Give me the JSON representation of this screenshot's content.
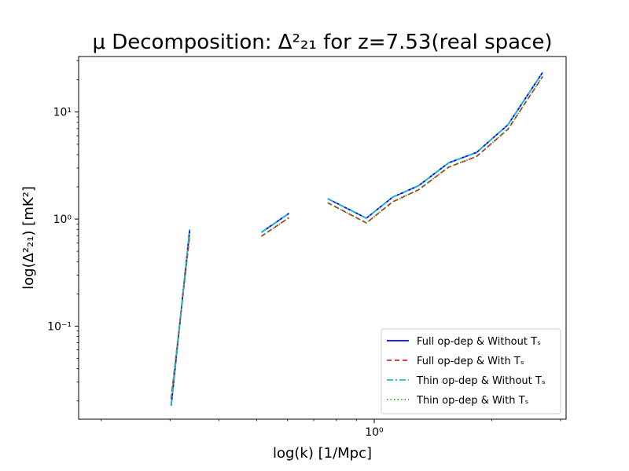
{
  "chart_data": {
    "type": "line",
    "title": "μ Decomposition: Δ²₂₁ for z=7.53(real space)",
    "xlabel": "log(k) [1/Mpc]",
    "ylabel": "log(Δ²₂₁) [mK²]",
    "xscale": "log",
    "yscale": "log",
    "xlim": [
      0.175,
      3.1
    ],
    "ylim": [
      0.0135,
      33
    ],
    "grid": false,
    "legend_position": "lower-right",
    "x_ticks": [
      {
        "value": 1,
        "label": "10⁰"
      }
    ],
    "y_ticks": [
      {
        "value": 0.1,
        "label": "10⁻¹"
      },
      {
        "value": 1,
        "label": "10⁰"
      },
      {
        "value": 10,
        "label": "10¹"
      }
    ],
    "series": [
      {
        "name": "Full op-dep & Without Tₛ",
        "color": "#0000ff",
        "style": "solid",
        "segments": [
          [
            [
              0.302,
              0.018
            ],
            [
              0.337,
              0.8
            ]
          ],
          [
            [
              0.514,
              0.75
            ],
            [
              0.605,
              1.13
            ]
          ],
          [
            [
              0.76,
              1.55
            ],
            [
              0.955,
              1.02
            ],
            [
              1.115,
              1.6
            ],
            [
              1.3,
              2.05
            ],
            [
              1.55,
              3.35
            ],
            [
              1.83,
              4.2
            ],
            [
              2.2,
              7.6
            ],
            [
              2.7,
              23.5
            ]
          ]
        ]
      },
      {
        "name": "Full op-dep & With Tₛ",
        "color": "#d62728",
        "style": "dashed",
        "segments": [
          [
            [
              0.302,
              0.021
            ],
            [
              0.337,
              0.7
            ]
          ],
          [
            [
              0.514,
              0.69
            ],
            [
              0.605,
              1.03
            ]
          ],
          [
            [
              0.76,
              1.42
            ],
            [
              0.955,
              0.92
            ],
            [
              1.115,
              1.45
            ],
            [
              1.3,
              1.88
            ],
            [
              1.55,
              3.05
            ],
            [
              1.83,
              3.85
            ],
            [
              2.2,
              6.9
            ],
            [
              2.7,
              21.5
            ]
          ]
        ]
      },
      {
        "name": "Thin op-dep & Without Tₛ",
        "color": "#17becf",
        "style": "dashdot",
        "segments": [
          [
            [
              0.302,
              0.018
            ],
            [
              0.337,
              0.8
            ]
          ],
          [
            [
              0.514,
              0.75
            ],
            [
              0.605,
              1.13
            ]
          ],
          [
            [
              0.76,
              1.55
            ],
            [
              0.955,
              1.02
            ],
            [
              1.115,
              1.6
            ],
            [
              1.3,
              2.05
            ],
            [
              1.55,
              3.35
            ],
            [
              1.83,
              4.2
            ],
            [
              2.2,
              7.6
            ],
            [
              2.7,
              23.5
            ]
          ]
        ]
      },
      {
        "name": "Thin op-dep & With Tₛ",
        "color": "#2ca02c",
        "style": "dotted",
        "segments": [
          [
            [
              0.302,
              0.021
            ],
            [
              0.337,
              0.7
            ]
          ],
          [
            [
              0.514,
              0.69
            ],
            [
              0.605,
              1.03
            ]
          ],
          [
            [
              0.76,
              1.42
            ],
            [
              0.955,
              0.92
            ],
            [
              1.115,
              1.45
            ],
            [
              1.3,
              1.88
            ],
            [
              1.55,
              3.05
            ],
            [
              1.83,
              3.85
            ],
            [
              2.2,
              6.9
            ],
            [
              2.7,
              21.5
            ]
          ]
        ]
      }
    ]
  }
}
